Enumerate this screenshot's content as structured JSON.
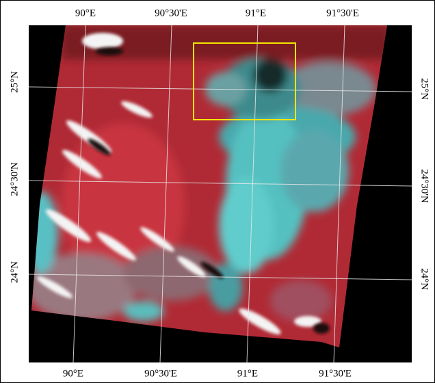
{
  "graticule": {
    "top": [
      "90°E",
      "90°30'E",
      "91°E",
      "91°30'E"
    ],
    "bottom": [
      "90°E",
      "90°30'E",
      "91°E",
      "91°30'E"
    ],
    "left": [
      "25°N",
      "24°30'N",
      "24°N"
    ],
    "right": [
      "25°N",
      "24°30'N",
      "24°N"
    ]
  }
}
